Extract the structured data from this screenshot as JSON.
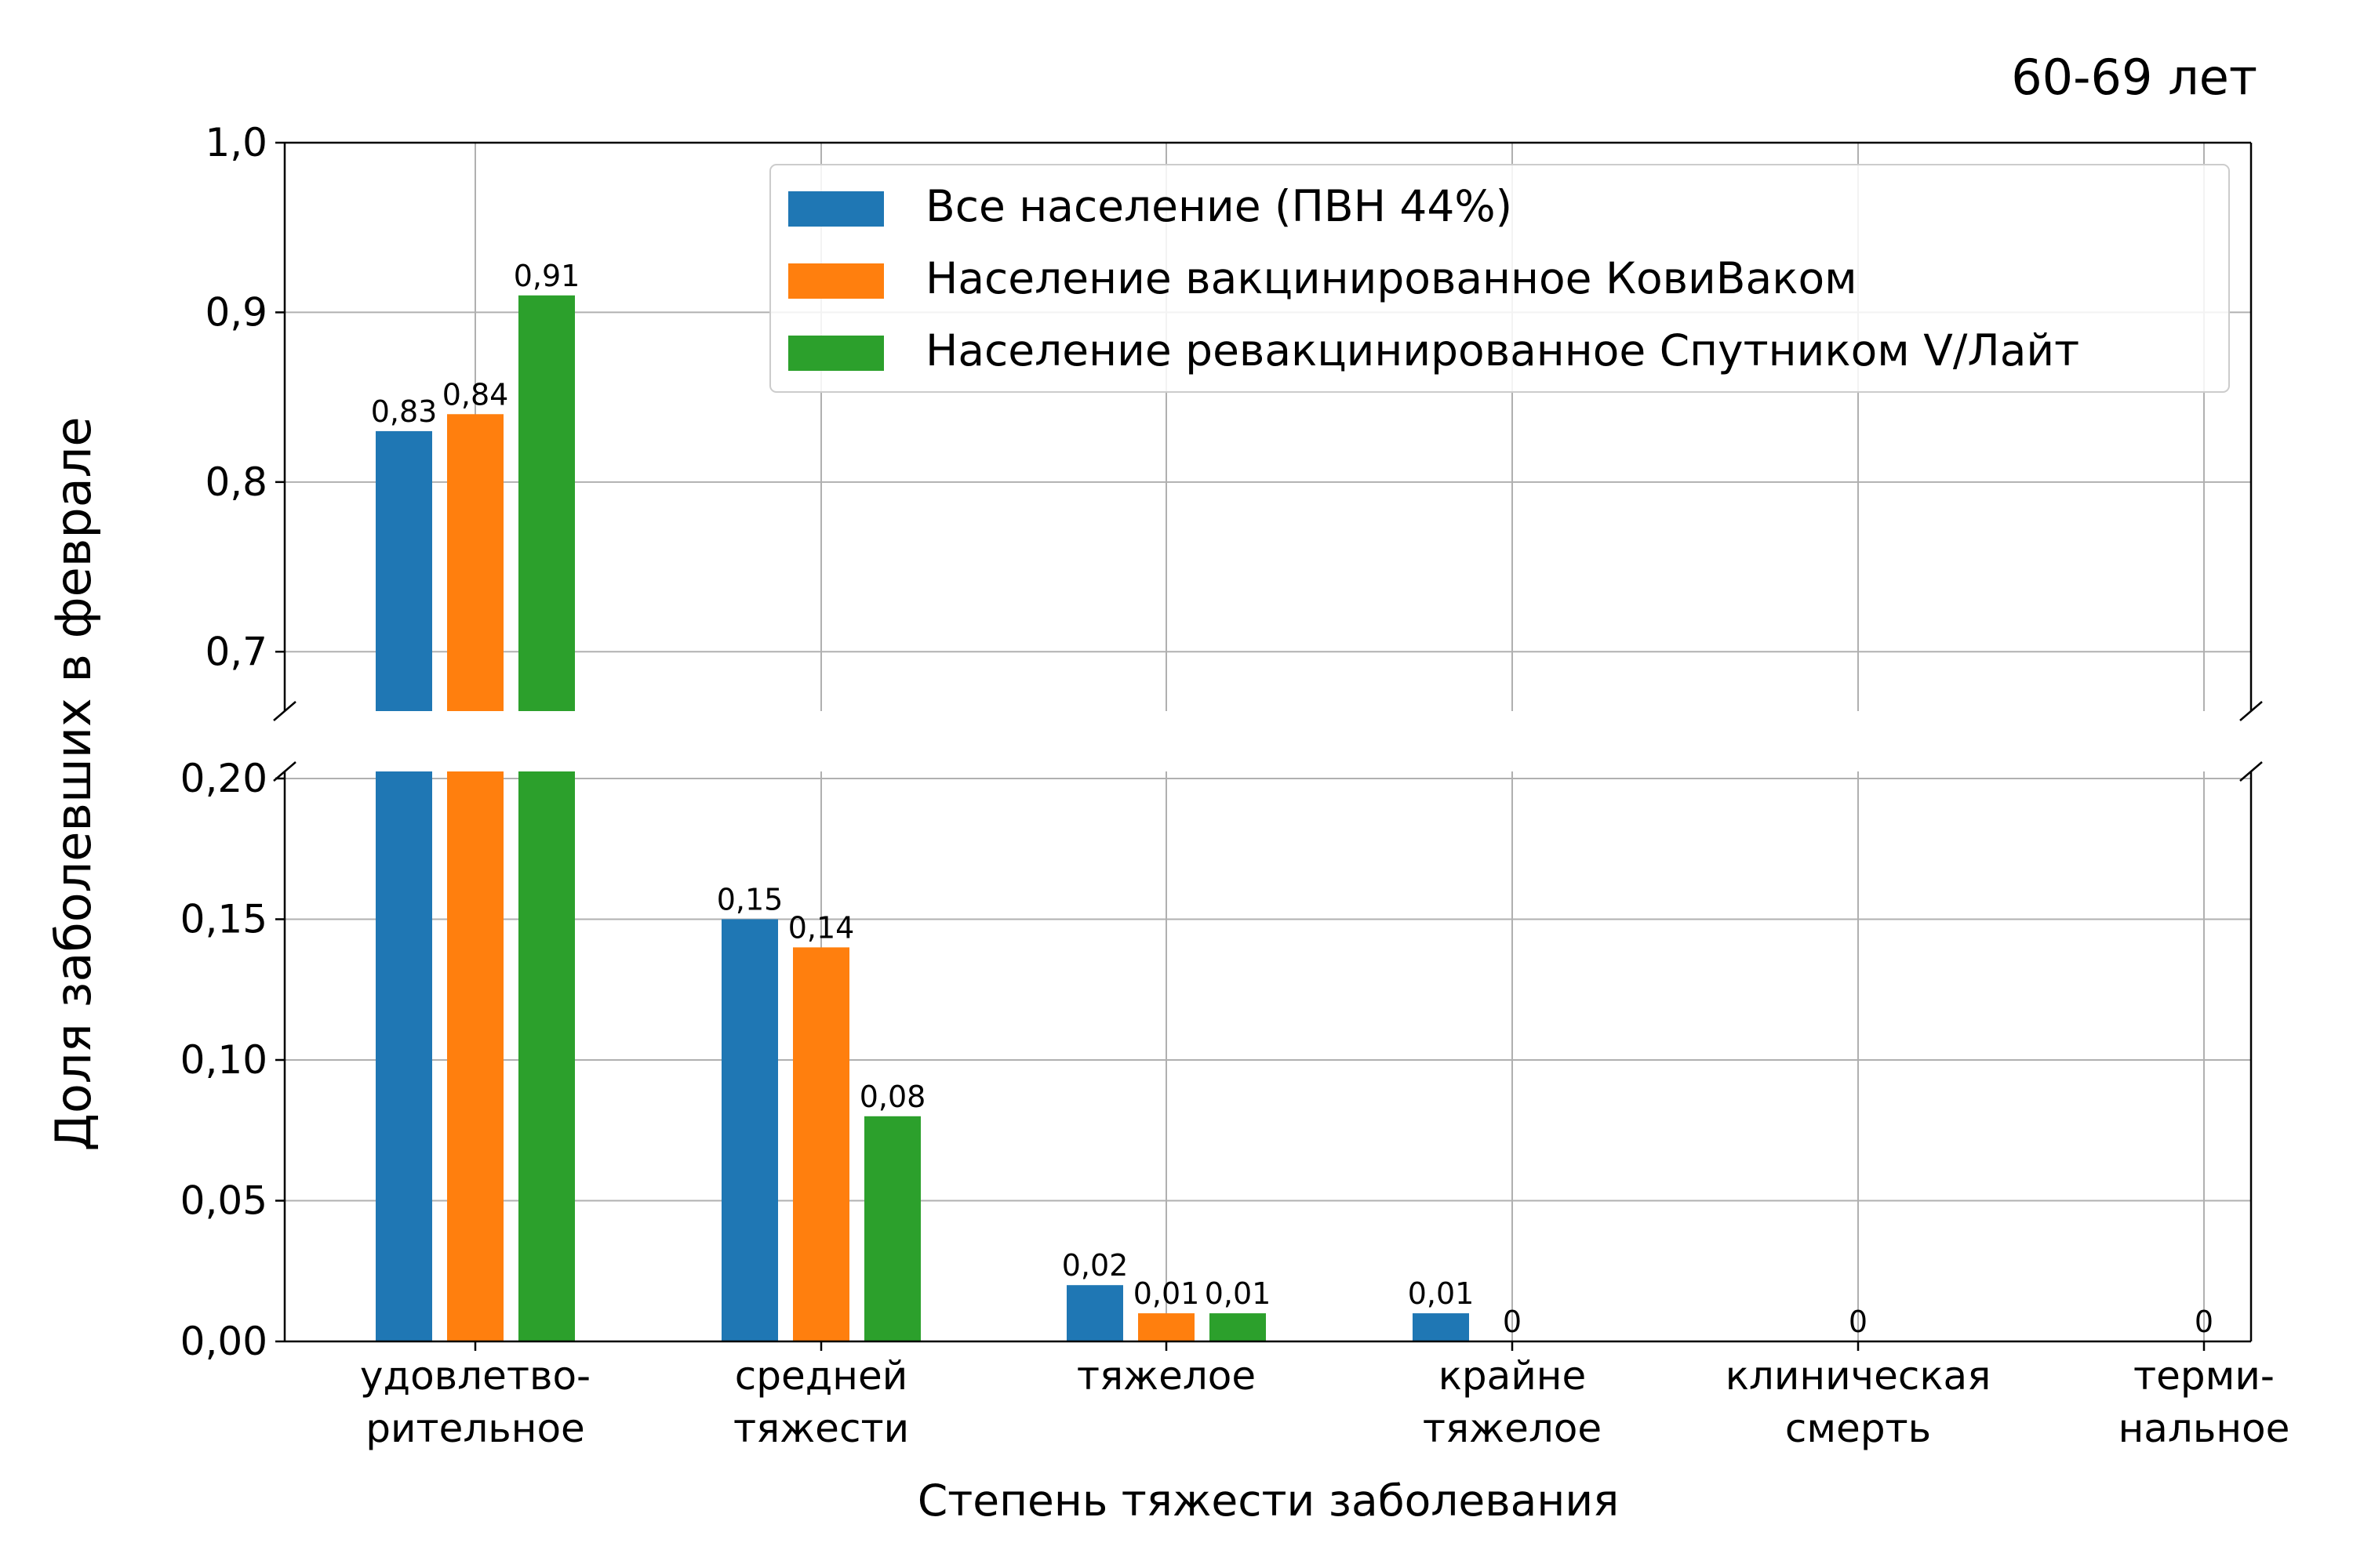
{
  "chart_data": {
    "type": "bar",
    "title": "60-69 лет",
    "xlabel": "Степень тяжести заболевания",
    "ylabel": "Доля заболевших в феврале",
    "categories": [
      [
        "удовлетво-",
        "рительное"
      ],
      [
        "средней",
        "тяжести"
      ],
      [
        "тяжелое"
      ],
      [
        "крайне",
        "тяжелое"
      ],
      [
        "клиническая",
        "смерть"
      ],
      [
        "терми-",
        "нальное"
      ]
    ],
    "series": [
      {
        "name": "Все население (ПВН 44%)",
        "color": "#1f77b4",
        "values": [
          0.83,
          0.15,
          0.02,
          0.01,
          0,
          0
        ],
        "labels": [
          "0,83",
          "0,15",
          "0,02",
          "0,01",
          "",
          ""
        ]
      },
      {
        "name": "Население вакцинированное КовиВаком",
        "color": "#ff7f0e",
        "values": [
          0.84,
          0.14,
          0.01,
          0,
          0,
          0
        ],
        "labels": [
          "0,84",
          "0,14",
          "0,01",
          "0",
          "0",
          "0"
        ]
      },
      {
        "name": "Население ревакцинированное Спутником V/Лайт",
        "color": "#2ca02c",
        "values": [
          0.91,
          0.08,
          0.01,
          0,
          0,
          0
        ],
        "labels": [
          "0,91",
          "0,08",
          "0,01",
          "",
          "",
          ""
        ]
      }
    ],
    "upper_panel": {
      "ylim": [
        0.665,
        1.0
      ],
      "ticks": [
        0.7,
        0.8,
        0.9,
        1.0
      ],
      "tick_labels": [
        "0,7",
        "0,8",
        "0,9",
        "1,0"
      ]
    },
    "lower_panel": {
      "ylim": [
        0,
        0.2025
      ],
      "ticks": [
        0,
        0.05,
        0.1,
        0.15,
        0.2
      ],
      "tick_labels": [
        "0,00",
        "0,05",
        "0,10",
        "0,15",
        "0,20"
      ]
    },
    "broken_axis": true,
    "grid": true,
    "legend_position": "top-right"
  }
}
